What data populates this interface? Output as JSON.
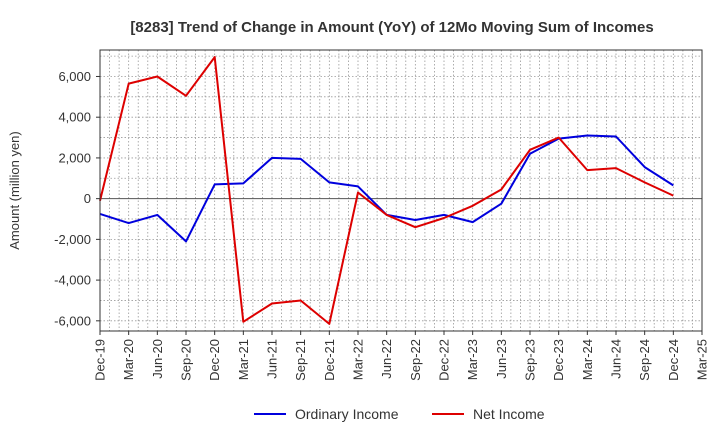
{
  "chart_data": {
    "type": "line",
    "title": "[8283]  Trend of Change in Amount (YoY) of 12Mo Moving Sum of Incomes",
    "ylabel": "Amount (million yen)",
    "xlabel": "",
    "ylim": [
      -6500,
      7300
    ],
    "yticks": [
      -6000,
      -4000,
      -2000,
      0,
      2000,
      4000,
      6000
    ],
    "ytick_labels": [
      "-6,000",
      "-4,000",
      "-2,000",
      "0",
      "2,000",
      "4,000",
      "6,000"
    ],
    "categories": [
      "Dec-19",
      "Mar-20",
      "Jun-20",
      "Sep-20",
      "Dec-20",
      "Mar-21",
      "Jun-21",
      "Sep-21",
      "Dec-21",
      "Mar-22",
      "Jun-22",
      "Sep-22",
      "Dec-22",
      "Mar-23",
      "Jun-23",
      "Sep-23",
      "Dec-23",
      "Mar-24",
      "Jun-24",
      "Sep-24",
      "Dec-24",
      "Mar-25"
    ],
    "grid": true,
    "legend_position": "bottom",
    "series": [
      {
        "name": "Ordinary Income",
        "color": "#0000dd",
        "values": [
          -750,
          -1200,
          -800,
          -2100,
          700,
          750,
          2000,
          1950,
          800,
          600,
          -800,
          -1050,
          -800,
          -1150,
          -250,
          2200,
          2950,
          3100,
          3050,
          1550,
          650,
          null
        ]
      },
      {
        "name": "Net Income",
        "color": "#dd0000",
        "values": [
          -100,
          5650,
          6000,
          5050,
          6950,
          -6050,
          -5150,
          -5000,
          -6150,
          300,
          -800,
          -1400,
          -950,
          -350,
          450,
          2400,
          3000,
          1400,
          1500,
          800,
          150,
          null
        ]
      }
    ]
  }
}
